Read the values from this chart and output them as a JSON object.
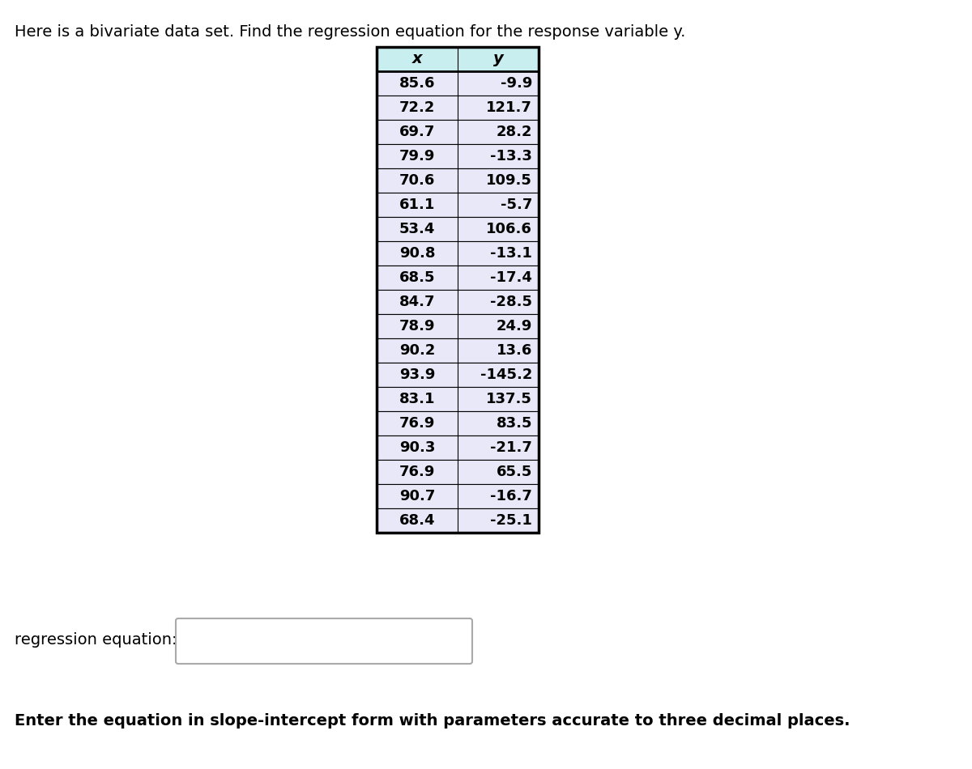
{
  "title": "Here is a bivariate data set. Find the regression equation for the response variable y.",
  "x_values": [
    85.6,
    72.2,
    69.7,
    79.9,
    70.6,
    61.1,
    53.4,
    90.8,
    68.5,
    84.7,
    78.9,
    90.2,
    93.9,
    83.1,
    76.9,
    90.3,
    76.9,
    90.7,
    68.4
  ],
  "y_values": [
    -9.9,
    121.7,
    28.2,
    -13.3,
    109.5,
    -5.7,
    106.6,
    -13.1,
    -17.4,
    -28.5,
    24.9,
    13.6,
    -145.2,
    137.5,
    83.5,
    -21.7,
    65.5,
    -16.7,
    -25.1
  ],
  "col_header_x": "x",
  "col_header_y": "y",
  "header_bg": "#c8eef0",
  "row_bg": "#e8e8f8",
  "border_color": "#000000",
  "regression_label": "regression equation:",
  "bottom_note": "Enter the equation in slope-intercept form with parameters accurate to three decimal places.",
  "font_size_title": 14,
  "font_size_table": 13,
  "font_size_reg_label": 14,
  "font_size_bottom": 14
}
